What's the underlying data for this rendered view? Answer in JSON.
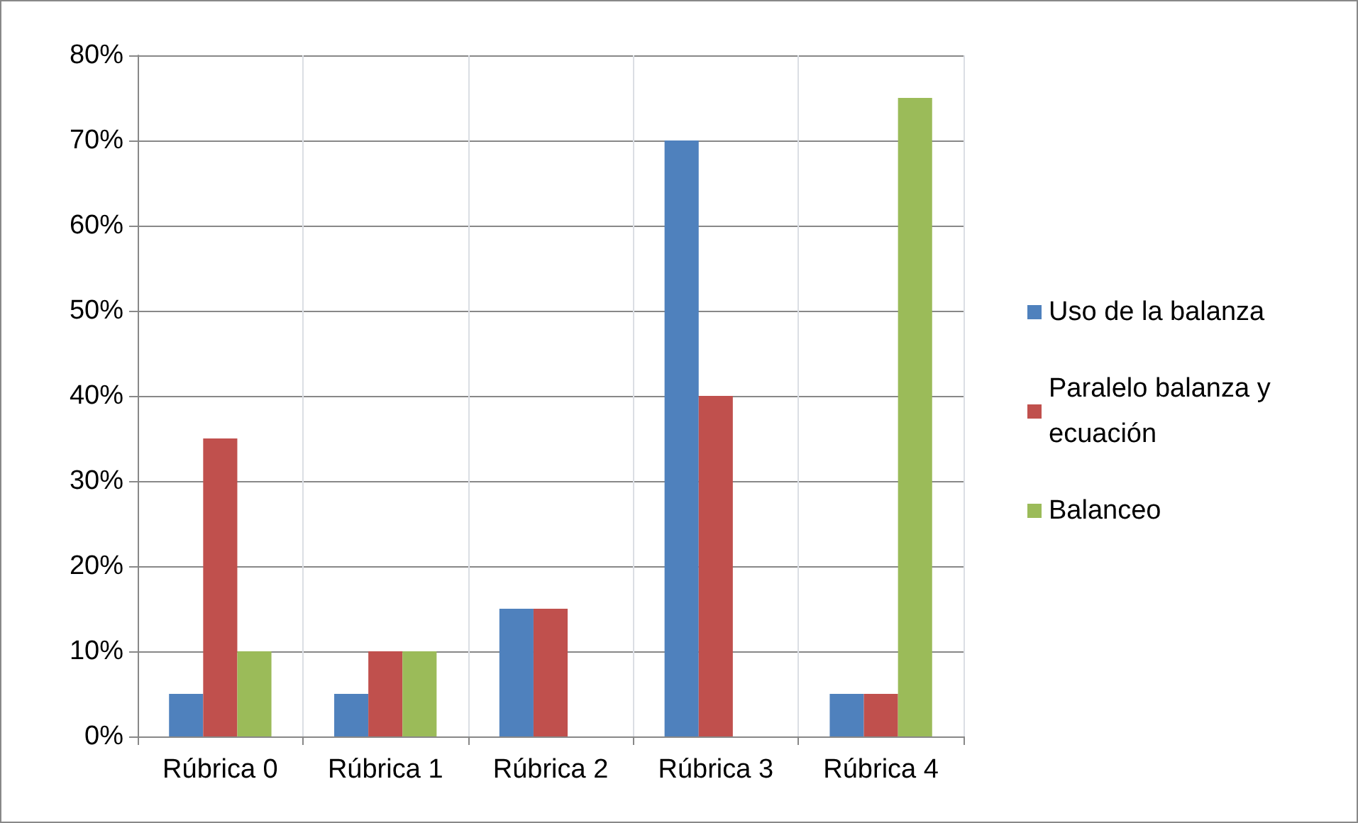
{
  "chart_data": {
    "type": "bar",
    "categories": [
      "Rúbrica 0",
      "Rúbrica 1",
      "Rúbrica 2",
      "Rúbrica 3",
      "Rúbrica 4"
    ],
    "series": [
      {
        "name": "Uso de la balanza",
        "color": "#4f81bd",
        "values": [
          5,
          5,
          15,
          70,
          5
        ]
      },
      {
        "name": "Paralelo balanza y ecuación",
        "color": "#c0504d",
        "values": [
          35,
          10,
          15,
          40,
          5
        ]
      },
      {
        "name": "Balanceo",
        "color": "#9bbb59",
        "values": [
          10,
          10,
          0,
          0,
          75
        ]
      }
    ],
    "ylim": [
      0,
      80
    ],
    "yticks": [
      {
        "value": 0,
        "label": "0%"
      },
      {
        "value": 10,
        "label": "10%"
      },
      {
        "value": 20,
        "label": "20%"
      },
      {
        "value": 30,
        "label": "30%"
      },
      {
        "value": 40,
        "label": "40%"
      },
      {
        "value": 50,
        "label": "50%"
      },
      {
        "value": 60,
        "label": "60%"
      },
      {
        "value": 70,
        "label": "70%"
      },
      {
        "value": 80,
        "label": "80%"
      }
    ],
    "grid": true,
    "legend": "right"
  }
}
